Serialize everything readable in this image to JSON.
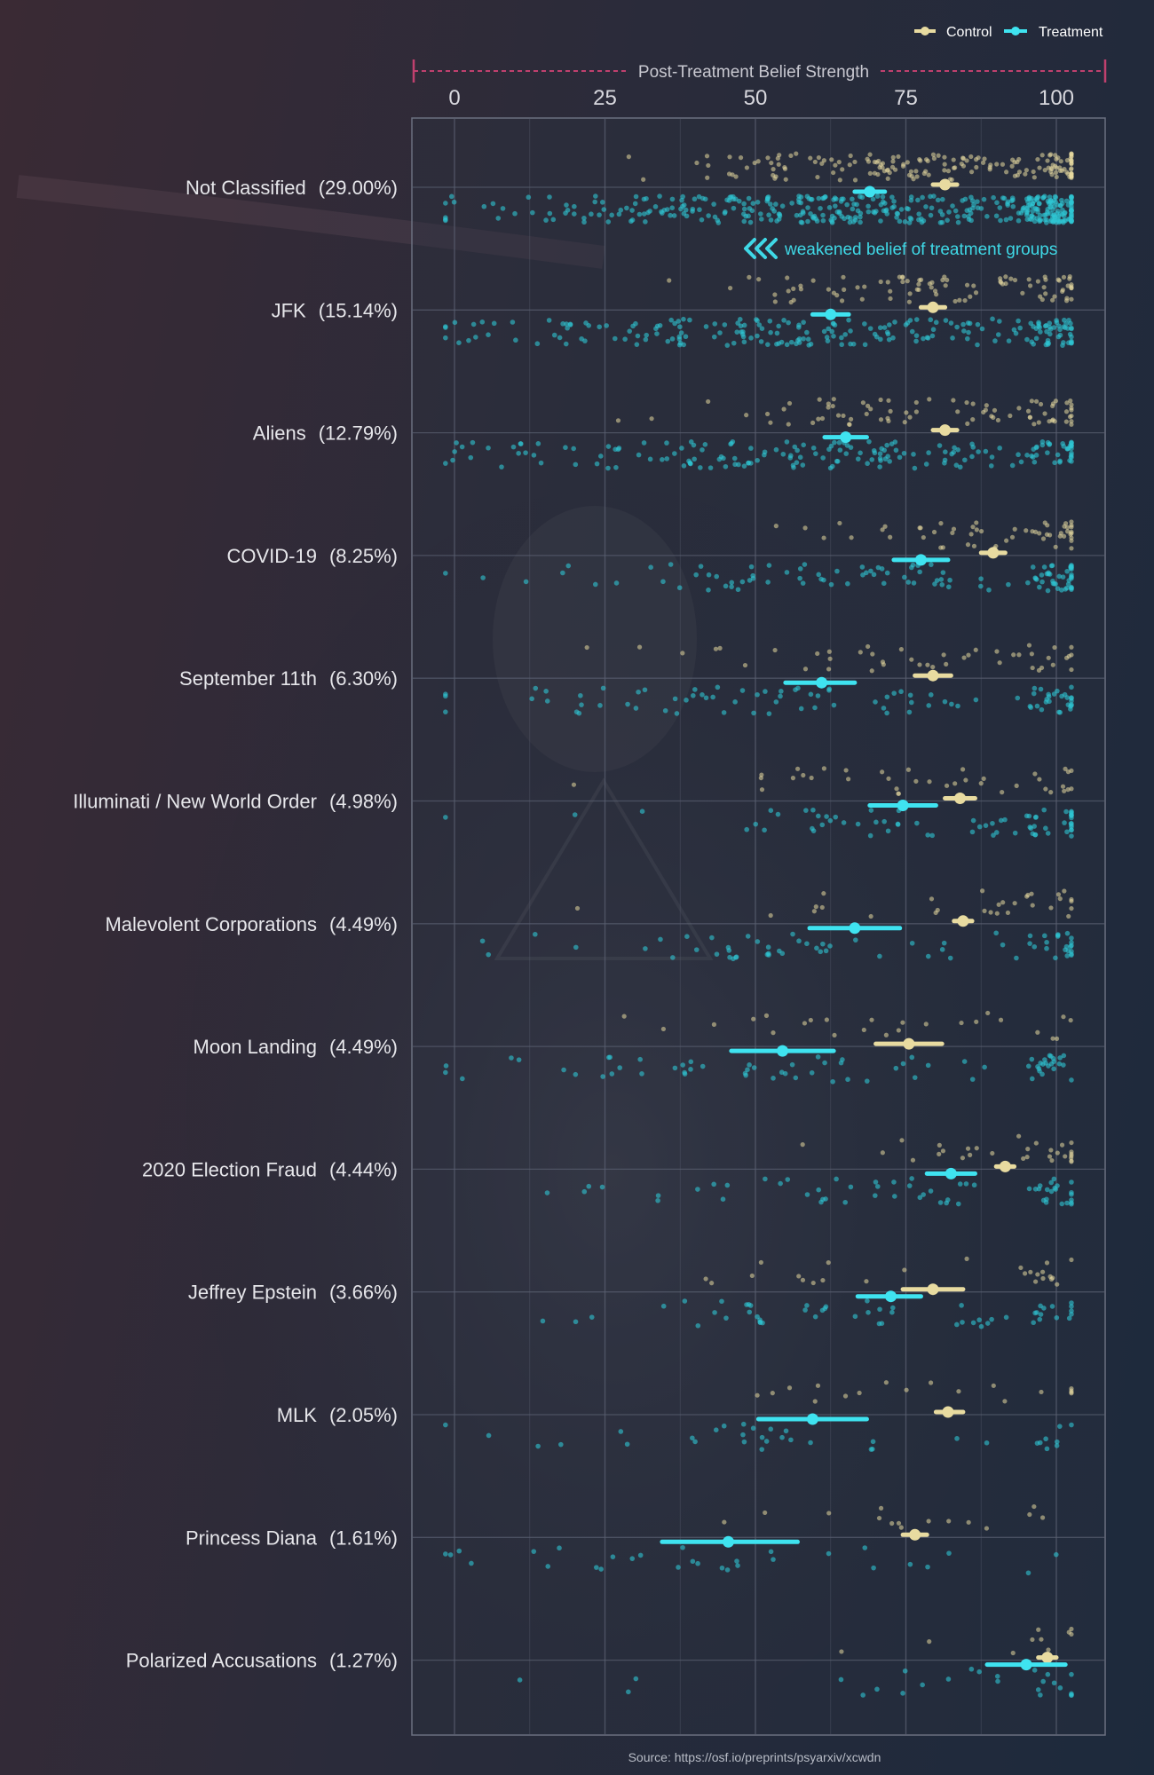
{
  "chart_data": {
    "type": "scatter",
    "title": "",
    "xlabel": "Post-Treatment Belief Strength",
    "ylabel": "",
    "xlim": [
      -7,
      108
    ],
    "xticks": [
      0,
      25,
      50,
      75,
      100
    ],
    "grid": true,
    "legend_position": "top-right",
    "legend": [
      {
        "name": "Control",
        "color": "#e8dba0"
      },
      {
        "name": "Treatment",
        "color": "#3fe3f0"
      }
    ],
    "annotation": "weakened belief of treatment groups",
    "source": "Source: https://osf.io/preprints/psyarxiv/xcwdn",
    "categories": [
      {
        "name": "Not Classified",
        "share": "(29.00%)",
        "control_mean": 81.5,
        "control_ci": [
          79.5,
          83.5
        ],
        "treatment_mean": 69.0,
        "treatment_ci": [
          66.5,
          71.5
        ],
        "n_control": 180,
        "n_treatment": 420
      },
      {
        "name": "JFK",
        "share": "(15.14%)",
        "control_mean": 79.5,
        "control_ci": [
          77.5,
          81.5
        ],
        "treatment_mean": 62.5,
        "treatment_ci": [
          59.5,
          65.5
        ],
        "n_control": 90,
        "n_treatment": 220
      },
      {
        "name": "Aliens",
        "share": "(12.79%)",
        "control_mean": 81.5,
        "control_ci": [
          79.5,
          83.5
        ],
        "treatment_mean": 65.0,
        "treatment_ci": [
          61.5,
          68.5
        ],
        "n_control": 80,
        "n_treatment": 180
      },
      {
        "name": "COVID-19",
        "share": "(8.25%)",
        "control_mean": 89.5,
        "control_ci": [
          87.5,
          91.5
        ],
        "treatment_mean": 77.5,
        "treatment_ci": [
          73.0,
          82.0
        ],
        "n_control": 55,
        "n_treatment": 110
      },
      {
        "name": "September 11th",
        "share": "(6.30%)",
        "control_mean": 79.5,
        "control_ci": [
          76.5,
          82.5
        ],
        "treatment_mean": 61.0,
        "treatment_ci": [
          55.0,
          66.5
        ],
        "n_control": 45,
        "n_treatment": 90
      },
      {
        "name": "Illuminati / New World Order",
        "share": "(4.98%)",
        "control_mean": 84.0,
        "control_ci": [
          81.5,
          86.5
        ],
        "treatment_mean": 74.5,
        "treatment_ci": [
          69.0,
          80.0
        ],
        "n_control": 38,
        "n_treatment": 70
      },
      {
        "name": "Malevolent Corporations",
        "share": "(4.49%)",
        "control_mean": 84.5,
        "control_ci": [
          83.0,
          86.0
        ],
        "treatment_mean": 66.5,
        "treatment_ci": [
          59.0,
          74.0
        ],
        "n_control": 30,
        "n_treatment": 65
      },
      {
        "name": "Moon Landing",
        "share": "(4.49%)",
        "control_mean": 75.5,
        "control_ci": [
          70.0,
          81.0
        ],
        "treatment_mean": 54.5,
        "treatment_ci": [
          46.0,
          63.0
        ],
        "n_control": 25,
        "n_treatment": 70
      },
      {
        "name": "2020 Election Fraud",
        "share": "(4.44%)",
        "control_mean": 91.5,
        "control_ci": [
          90.0,
          93.0
        ],
        "treatment_mean": 82.5,
        "treatment_ci": [
          78.5,
          86.5
        ],
        "n_control": 30,
        "n_treatment": 60
      },
      {
        "name": "Jeffrey Epstein",
        "share": "(3.66%)",
        "control_mean": 79.5,
        "control_ci": [
          74.5,
          84.5
        ],
        "treatment_mean": 72.5,
        "treatment_ci": [
          67.0,
          77.5
        ],
        "n_control": 25,
        "n_treatment": 55
      },
      {
        "name": "MLK",
        "share": "(2.05%)",
        "control_mean": 82.0,
        "control_ci": [
          80.0,
          84.5
        ],
        "treatment_mean": 59.5,
        "treatment_ci": [
          50.5,
          68.5
        ],
        "n_control": 18,
        "n_treatment": 35
      },
      {
        "name": "Princess Diana",
        "share": "(1.61%)",
        "control_mean": 76.5,
        "control_ci": [
          74.5,
          78.5
        ],
        "treatment_mean": 45.5,
        "treatment_ci": [
          34.5,
          57.0
        ],
        "n_control": 15,
        "n_treatment": 30
      },
      {
        "name": "Polarized Accusations",
        "share": "(1.27%)",
        "control_mean": 98.5,
        "control_ci": [
          97.0,
          100.0
        ],
        "treatment_mean": 95.0,
        "treatment_ci": [
          88.5,
          101.5
        ],
        "n_control": 10,
        "n_treatment": 25
      }
    ]
  },
  "colors": {
    "control": "#e8dba0",
    "treatment": "#3fe3f0",
    "axis_bracket": "#c0406e",
    "grid": "#5a5f70"
  }
}
